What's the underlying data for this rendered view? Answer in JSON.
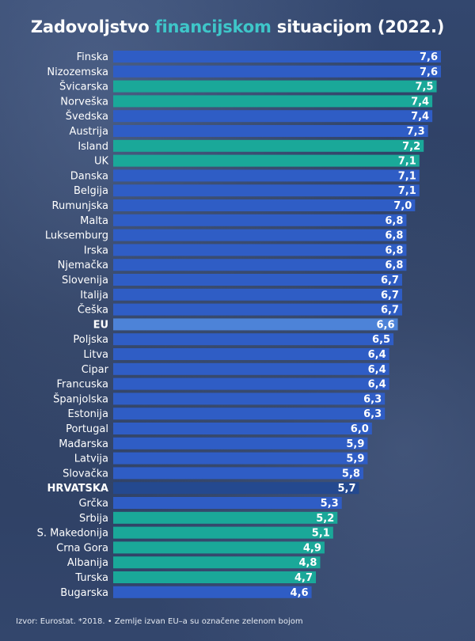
{
  "title": {
    "part1": "Zadovoljstvo ",
    "highlight": "financijskom",
    "part2": " situacijom (2022.)"
  },
  "colors": {
    "eu_member": "#2f5dc5",
    "non_eu": "#1aa899",
    "eu_average": "#4d83d8",
    "croatia": "#24498f",
    "title_highlight": "#3ec6c9"
  },
  "chart_data": {
    "type": "bar",
    "orientation": "horizontal",
    "categories": [
      "Finska",
      "Nizozemska",
      "Švicarska",
      "Norveška",
      "Švedska",
      "Austrija",
      "Island",
      "UK",
      "Danska",
      "Belgija",
      "Rumunjska",
      "Malta",
      "Luksemburg",
      "Irska",
      "Njemačka",
      "Slovenija",
      "Italija",
      "Češka",
      "EU",
      "Poljska",
      "Litva",
      "Cipar",
      "Francuska",
      "Španjolska",
      "Estonija",
      "Portugal",
      "Mađarska",
      "Latvija",
      "Slovačka",
      "HRVATSKA",
      "Grčka",
      "Srbija",
      "S. Makedonija",
      "Crna Gora",
      "Albanija",
      "Turska",
      "Bugarska"
    ],
    "values": [
      7.6,
      7.6,
      7.5,
      7.4,
      7.4,
      7.3,
      7.2,
      7.1,
      7.1,
      7.1,
      7.0,
      6.8,
      6.8,
      6.8,
      6.8,
      6.7,
      6.7,
      6.7,
      6.6,
      6.5,
      6.4,
      6.4,
      6.4,
      6.3,
      6.3,
      6.0,
      5.9,
      5.9,
      5.8,
      5.7,
      5.3,
      5.2,
      5.1,
      4.9,
      4.8,
      4.7,
      4.6
    ],
    "value_labels": [
      "7,6",
      "7,6",
      "7,5",
      "7,4",
      "7,4",
      "7,3",
      "7,2",
      "7,1",
      "7,1",
      "7,1",
      "7,0",
      "6,8",
      "6,8",
      "6,8",
      "6,8",
      "6,7",
      "6,7",
      "6,7",
      "6,6",
      "6,5",
      "6,4",
      "6,4",
      "6,4",
      "6,3",
      "6,3",
      "6,0",
      "5,9",
      "5,9",
      "5,8",
      "5,7",
      "5,3",
      "5,2",
      "5,1",
      "4,9",
      "4,8",
      "4,7",
      "4,6"
    ],
    "group": [
      "eu",
      "eu",
      "non_eu",
      "non_eu",
      "eu",
      "eu",
      "non_eu",
      "non_eu",
      "eu",
      "eu",
      "eu",
      "eu",
      "eu",
      "eu",
      "eu",
      "eu",
      "eu",
      "eu",
      "eu_average",
      "eu",
      "eu",
      "eu",
      "eu",
      "eu",
      "eu",
      "eu",
      "eu",
      "eu",
      "eu",
      "croatia",
      "eu",
      "non_eu",
      "non_eu",
      "non_eu",
      "non_eu",
      "non_eu",
      "eu"
    ],
    "bold_categories": [
      "EU",
      "HRVATSKA"
    ],
    "xlim": [
      0,
      7.6
    ],
    "grid": false,
    "legend": "none"
  },
  "source": "Izvor: Eurostat. *2018. • Zemlje izvan EU–a su označene zelenom bojom"
}
